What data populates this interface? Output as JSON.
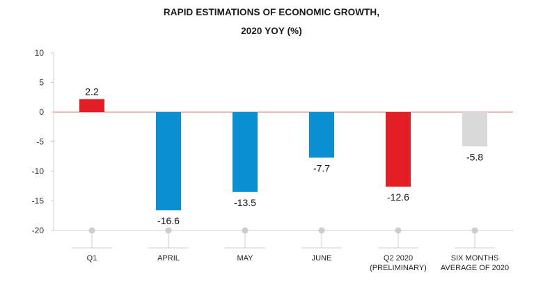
{
  "chart_data": {
    "type": "bar",
    "title_lines": [
      "RAPID ESTIMATIONS OF ECONOMIC GROWTH,",
      "2020 YOY (%)"
    ],
    "categories": [
      [
        "Q1"
      ],
      [
        "APRIL"
      ],
      [
        "MAY"
      ],
      [
        "JUNE"
      ],
      [
        "Q2 2020",
        "(PRELIMINARY)"
      ],
      [
        "SIX MONTHS",
        "AVERAGE OF 2020"
      ]
    ],
    "values": [
      2.2,
      -16.6,
      -13.5,
      -7.7,
      -12.6,
      -5.8
    ],
    "value_labels": [
      "2.2",
      "-16.6",
      "-13.5",
      "-7.7",
      "-12.6",
      "-5.8"
    ],
    "colors": [
      "#e41e25",
      "#0a8fd3",
      "#0a8fd3",
      "#0a8fd3",
      "#e41e25",
      "#d9d9d9"
    ],
    "ylim": [
      -20,
      10
    ],
    "yticks": [
      10,
      5,
      0,
      -5,
      -10,
      -15,
      -20
    ],
    "zero_line_color": "#e57373",
    "grid": false,
    "xlabel": "",
    "ylabel": ""
  }
}
